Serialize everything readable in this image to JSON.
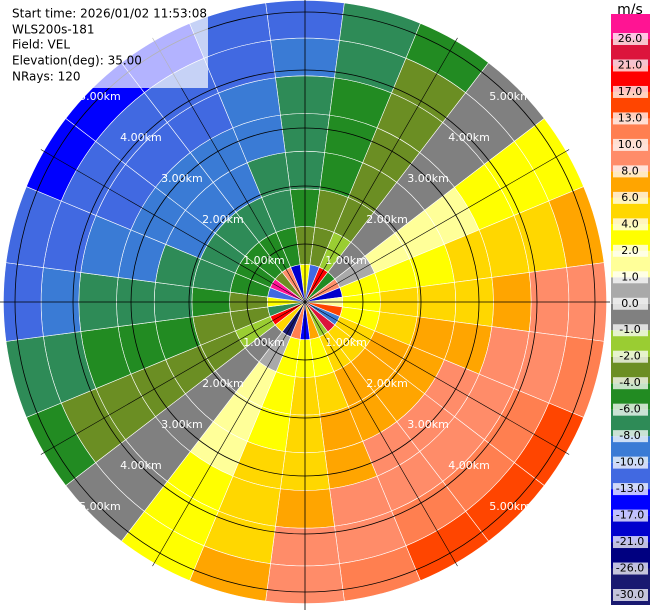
{
  "chart_data": {
    "type": "ppi",
    "info": [
      "Start time: 2026/01/02 11:53:08",
      "WLS200s-181",
      "Field: VEL",
      "Elevation(deg): 35.00",
      "NRays: 120"
    ],
    "unit": "m/s",
    "azimuths": [
      0,
      15,
      30,
      45,
      60,
      75,
      90,
      105,
      120,
      135,
      150,
      165,
      180,
      195,
      210,
      225,
      240,
      255,
      270,
      285,
      300,
      315,
      330,
      345
    ],
    "range_edges_km": [
      0,
      0.65,
      1.3,
      1.95,
      2.6,
      3.25,
      3.9,
      4.55,
      5.2
    ],
    "velocity": [
      [
        3,
        -4,
        -6,
        -7,
        -7,
        -8,
        -10,
        -11
      ],
      [
        -12,
        -3,
        -4,
        -5,
        -5,
        -6,
        -7,
        -8
      ],
      [
        20,
        -2,
        -3,
        -3,
        -3,
        -4,
        -4,
        -5
      ],
      [
        -5,
        -1,
        -1,
        -1,
        -1,
        -1,
        -1,
        -1
      ],
      [
        8,
        0,
        1,
        1,
        1,
        2,
        2,
        3
      ],
      [
        -20,
        2,
        3,
        3,
        4,
        4,
        5,
        6
      ],
      [
        1,
        3,
        4,
        5,
        5,
        6,
        8,
        9
      ],
      [
        15,
        3,
        5,
        6,
        7,
        8,
        9,
        11
      ],
      [
        -9,
        4,
        6,
        7,
        8,
        9,
        11,
        13
      ],
      [
        24,
        4,
        6,
        7,
        8,
        9,
        11,
        13
      ],
      [
        -2,
        4,
        6,
        7,
        8,
        9,
        11,
        13
      ],
      [
        6,
        3,
        5,
        6,
        7,
        8,
        9,
        11
      ],
      [
        -16,
        3,
        4,
        5,
        5,
        6,
        8,
        9
      ],
      [
        11,
        2,
        3,
        3,
        4,
        4,
        5,
        6
      ],
      [
        -28,
        0,
        1,
        1,
        1,
        2,
        2,
        3
      ],
      [
        4,
        -1,
        -1,
        -1,
        -1,
        -1,
        -1,
        -1
      ],
      [
        18,
        -2,
        -3,
        -3,
        -3,
        -4,
        -4,
        -5
      ],
      [
        -7,
        -3,
        -4,
        -5,
        -5,
        -6,
        -7,
        -8
      ],
      [
        2,
        -4,
        -6,
        -7,
        -7,
        -8,
        -10,
        -11
      ],
      [
        -13,
        -5,
        -7,
        -8,
        -9,
        -10,
        -11,
        -13
      ],
      [
        27,
        -6,
        -8,
        -9,
        -10,
        -11,
        -13,
        -15
      ],
      [
        -4,
        -6,
        -8,
        -9,
        -10,
        -11,
        -13,
        -15
      ],
      [
        9,
        -6,
        -8,
        -9,
        -10,
        -11,
        -13,
        -15
      ],
      [
        -19,
        -5,
        -7,
        -8,
        -9,
        -10,
        -11,
        -13
      ]
    ],
    "rings": [
      {
        "value": 1,
        "label": "1.00km"
      },
      {
        "value": 2,
        "label": "2.00km"
      },
      {
        "value": 3,
        "label": "3.00km"
      },
      {
        "value": 4,
        "label": "4.00km"
      },
      {
        "value": 5,
        "label": "5.00km"
      }
    ],
    "levels": [
      {
        "value": -30,
        "label": "-30.0"
      },
      {
        "value": -26,
        "label": "-26.0"
      },
      {
        "value": -21,
        "label": "-21.0"
      },
      {
        "value": -17,
        "label": "-17.0"
      },
      {
        "value": -13,
        "label": "-13.0"
      },
      {
        "value": -10,
        "label": "-10.0"
      },
      {
        "value": -8,
        "label": "-8.0"
      },
      {
        "value": -6,
        "label": "-6.0"
      },
      {
        "value": -4,
        "label": "-4.0"
      },
      {
        "value": -2,
        "label": "-2.0"
      },
      {
        "value": -1,
        "label": "-1.0"
      },
      {
        "value": 0,
        "label": "0.0"
      },
      {
        "value": 1,
        "label": "1.0"
      },
      {
        "value": 2,
        "label": "2.0"
      },
      {
        "value": 4,
        "label": "4.0"
      },
      {
        "value": 6,
        "label": "6.0"
      },
      {
        "value": 8,
        "label": "8.0"
      },
      {
        "value": 10,
        "label": "10.0"
      },
      {
        "value": 13,
        "label": "13.0"
      },
      {
        "value": 17,
        "label": "17.0"
      },
      {
        "value": 21,
        "label": "21.0"
      },
      {
        "value": 26,
        "label": "26.0"
      }
    ],
    "colors": [
      "#191970",
      "#000080",
      "#0000cd",
      "#0000ff",
      "#4169e1",
      "#3a7bd5",
      "#2e8b57",
      "#228b22",
      "#6b8e23",
      "#9acd32",
      "#808080",
      "#a9a9a9",
      "#ffff99",
      "#ffff00",
      "#ffd700",
      "#ffa500",
      "#ff8c69",
      "#ff7f50",
      "#ff4500",
      "#ff0000",
      "#dc143c",
      "#ff1493"
    ]
  }
}
